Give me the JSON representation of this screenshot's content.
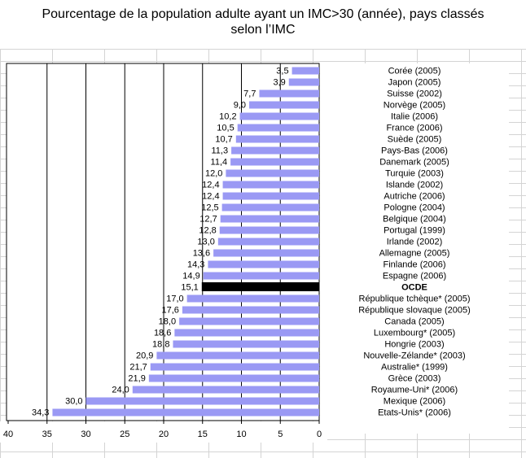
{
  "title_lines": [
    "Pourcentage de la population adulte ayant un IMC>30 (année), pays classés",
    "selon l’IMC"
  ],
  "colors": {
    "bar": "#9a99f4",
    "highlight": "#000000",
    "grid": "#d4d4d4"
  },
  "chart_data": {
    "type": "bar",
    "orientation": "horizontal",
    "x_reversed": true,
    "xlim": [
      0,
      40
    ],
    "xticks": [
      "40",
      "35",
      "30",
      "25",
      "20",
      "15",
      "10",
      "5",
      "0"
    ],
    "grid": true,
    "categories": [
      "Corée (2005)",
      "Japon (2005)",
      "Suisse (2002)",
      "Norvège (2005)",
      "Italie (2006)",
      "France (2006)",
      "Suède (2005)",
      "Pays-Bas (2006)",
      "Danemark (2005)",
      "Turquie (2003)",
      "Islande (2002)",
      "Autriche (2006)",
      "Pologne (2004)",
      "Belgique (2004)",
      "Portugal (1999)",
      "Irlande (2002)",
      "Allemagne (2005)",
      "Finlande (2006)",
      "Espagne (2006)",
      "OCDE",
      "République tchèque* (2005)",
      "République slovaque (2005)",
      "Canada (2005)",
      "Luxembourg* (2005)",
      "Hongrie (2003)",
      "Nouvelle-Zélande* (2003)",
      "Australie* (1999)",
      "Grèce (2003)",
      "Royaume-Uni* (2006)",
      "Mexique (2006)",
      "Etats-Unis* (2006)"
    ],
    "values": [
      3.5,
      3.9,
      7.7,
      9.0,
      10.2,
      10.5,
      10.7,
      11.3,
      11.4,
      12.0,
      12.4,
      12.4,
      12.5,
      12.7,
      12.8,
      13.0,
      13.6,
      14.3,
      14.9,
      15.1,
      17.0,
      17.6,
      18.0,
      18.6,
      18.8,
      20.9,
      21.7,
      21.9,
      24.0,
      30.0,
      34.3
    ],
    "value_labels": [
      "3,5",
      "3,9",
      "7,7",
      "9,0",
      "10,2",
      "10,5",
      "10,7",
      "11,3",
      "11,4",
      "12,0",
      "12,4",
      "12,4",
      "12,5",
      "12,7",
      "12,8",
      "13,0",
      "13,6",
      "14,3",
      "14,9",
      "15,1",
      "17,0",
      "17,6",
      "18,0",
      "18,6",
      "18,8",
      "20,9",
      "21,7",
      "21,9",
      "24,0",
      "30,0",
      "34,3"
    ],
    "highlight": "OCDE"
  }
}
